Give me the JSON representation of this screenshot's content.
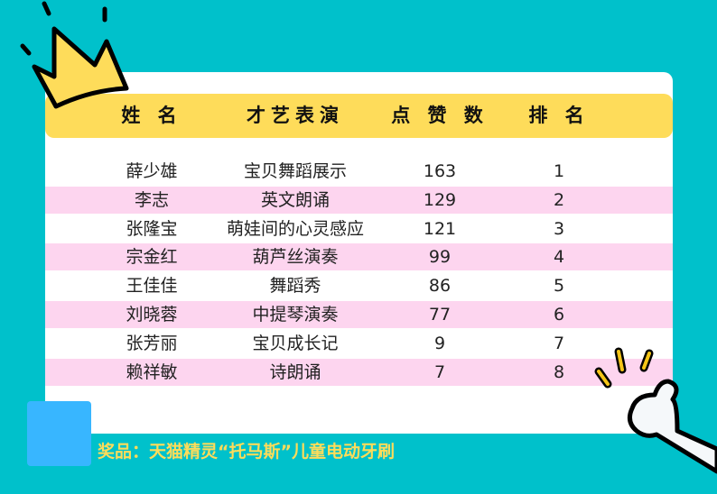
{
  "table": {
    "headers": [
      "姓 名",
      "才艺表演",
      "点 赞 数",
      "排 名"
    ],
    "rows": [
      {
        "name": "薛少雄",
        "talent": "宝贝舞蹈展示",
        "likes": "163",
        "rank": "1"
      },
      {
        "name": "李志",
        "talent": "英文朗诵",
        "likes": "129",
        "rank": "2"
      },
      {
        "name": "张隆宝",
        "talent": "萌娃间的心灵感应",
        "likes": "121",
        "rank": "3"
      },
      {
        "name": "宗金红",
        "talent": "葫芦丝演奏",
        "likes": "99",
        "rank": "4"
      },
      {
        "name": "王佳佳",
        "talent": "舞蹈秀",
        "likes": "86",
        "rank": "5"
      },
      {
        "name": "刘晓蓉",
        "talent": "中提琴演奏",
        "likes": "77",
        "rank": "6"
      },
      {
        "name": "张芳丽",
        "talent": "宝贝成长记",
        "likes": "9",
        "rank": "7"
      },
      {
        "name": "赖祥敏",
        "talent": "诗朗诵",
        "likes": "7",
        "rank": "8"
      }
    ]
  },
  "prize": "奖品：天猫精灵“托马斯”儿童电动牙刷",
  "colors": {
    "background": "#00c1cb",
    "header": "#fedc5a",
    "stripe": "#fdd5ef",
    "accent_square": "#38b6ff"
  },
  "icons": [
    "crown-icon",
    "thumbs-up-icon"
  ]
}
